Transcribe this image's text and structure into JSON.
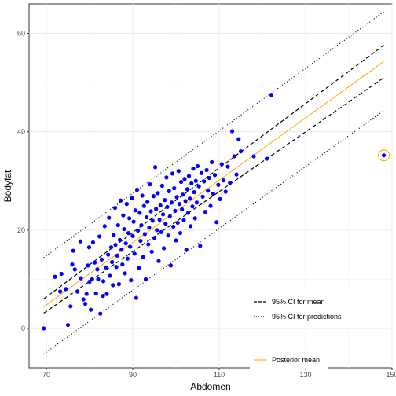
{
  "chart_data": {
    "type": "scatter",
    "title": "",
    "xlabel": "Abdomen",
    "ylabel": "Bodyfat",
    "xlim": [
      66,
      150
    ],
    "ylim": [
      -8,
      66
    ],
    "x_ticks": [
      70,
      90,
      110,
      130,
      150
    ],
    "y_ticks": [
      0,
      20,
      40,
      60
    ],
    "grid": true,
    "points": [
      [
        69.4,
        0.0
      ],
      [
        72.0,
        10.5
      ],
      [
        73.2,
        7.5
      ],
      [
        73.5,
        11.1
      ],
      [
        74.5,
        8.0
      ],
      [
        75.0,
        0.7
      ],
      [
        75.6,
        4.5
      ],
      [
        76.0,
        13.0
      ],
      [
        76.2,
        15.8
      ],
      [
        76.6,
        12.0
      ],
      [
        77.2,
        7.5
      ],
      [
        77.9,
        17.7
      ],
      [
        78.0,
        10.2
      ],
      [
        78.6,
        5.9
      ],
      [
        79.0,
        5.0
      ],
      [
        79.3,
        7.0
      ],
      [
        79.6,
        12.8
      ],
      [
        79.9,
        16.5
      ],
      [
        80.0,
        9.5
      ],
      [
        80.3,
        3.8
      ],
      [
        80.6,
        10.0
      ],
      [
        80.8,
        17.5
      ],
      [
        81.2,
        13.4
      ],
      [
        81.5,
        7.1
      ],
      [
        81.8,
        12.0
      ],
      [
        82.0,
        10.0
      ],
      [
        82.3,
        18.7
      ],
      [
        82.5,
        3.0
      ],
      [
        82.8,
        14.0
      ],
      [
        83.1,
        6.6
      ],
      [
        83.2,
        9.6
      ],
      [
        83.5,
        20.8
      ],
      [
        83.8,
        12.4
      ],
      [
        84.0,
        7.0
      ],
      [
        84.3,
        15.0
      ],
      [
        84.5,
        22.5
      ],
      [
        84.7,
        10.7
      ],
      [
        85.0,
        16.5
      ],
      [
        85.2,
        13.5
      ],
      [
        85.4,
        8.8
      ],
      [
        85.6,
        19.0
      ],
      [
        85.9,
        24.5
      ],
      [
        86.0,
        17.0
      ],
      [
        86.2,
        12.5
      ],
      [
        86.4,
        14.8
      ],
      [
        86.6,
        21.0
      ],
      [
        86.8,
        9.0
      ],
      [
        87.0,
        18.0
      ],
      [
        87.2,
        26.0
      ],
      [
        87.4,
        16.0
      ],
      [
        87.6,
        13.0
      ],
      [
        87.8,
        23.0
      ],
      [
        88.0,
        20.2
      ],
      [
        88.2,
        11.2
      ],
      [
        88.4,
        17.3
      ],
      [
        88.6,
        25.3
      ],
      [
        88.8,
        14.2
      ],
      [
        89.0,
        19.4
      ],
      [
        89.2,
        22.4
      ],
      [
        89.4,
        16.6
      ],
      [
        89.6,
        9.8
      ],
      [
        89.8,
        26.5
      ],
      [
        90.0,
        18.8
      ],
      [
        90.2,
        21.7
      ],
      [
        90.4,
        15.2
      ],
      [
        90.6,
        24.0
      ],
      [
        90.8,
        6.2
      ],
      [
        91.0,
        28.2
      ],
      [
        91.2,
        19.9
      ],
      [
        91.4,
        12.3
      ],
      [
        91.6,
        23.5
      ],
      [
        91.8,
        17.8
      ],
      [
        92.0,
        21.0
      ],
      [
        92.2,
        27.0
      ],
      [
        92.4,
        14.5
      ],
      [
        92.6,
        24.9
      ],
      [
        92.8,
        19.2
      ],
      [
        93.0,
        10.0
      ],
      [
        93.2,
        22.6
      ],
      [
        93.4,
        25.7
      ],
      [
        93.6,
        17.1
      ],
      [
        93.8,
        20.5
      ],
      [
        94.0,
        29.3
      ],
      [
        94.2,
        23.8
      ],
      [
        94.4,
        15.6
      ],
      [
        94.6,
        21.9
      ],
      [
        94.8,
        26.9
      ],
      [
        95.0,
        18.4
      ],
      [
        95.2,
        32.8
      ],
      [
        95.4,
        24.3
      ],
      [
        95.6,
        20.0
      ],
      [
        95.8,
        27.5
      ],
      [
        96.0,
        13.7
      ],
      [
        96.2,
        22.1
      ],
      [
        96.4,
        25.0
      ],
      [
        96.6,
        19.6
      ],
      [
        96.8,
        29.0
      ],
      [
        97.0,
        23.2
      ],
      [
        97.2,
        16.3
      ],
      [
        97.4,
        26.1
      ],
      [
        97.6,
        21.3
      ],
      [
        97.8,
        30.7
      ],
      [
        98.0,
        24.7
      ],
      [
        98.2,
        18.9
      ],
      [
        98.4,
        27.9
      ],
      [
        98.6,
        22.8
      ],
      [
        98.8,
        12.8
      ],
      [
        99.0,
        25.6
      ],
      [
        99.2,
        31.5
      ],
      [
        99.4,
        20.7
      ],
      [
        99.6,
        28.5
      ],
      [
        99.8,
        23.9
      ],
      [
        100.0,
        17.9
      ],
      [
        100.2,
        26.7
      ],
      [
        100.4,
        21.5
      ],
      [
        100.6,
        32.0
      ],
      [
        100.8,
        25.3
      ],
      [
        101.0,
        19.4
      ],
      [
        101.2,
        29.8
      ],
      [
        101.4,
        24.2
      ],
      [
        101.6,
        27.2
      ],
      [
        101.8,
        22.0
      ],
      [
        102.0,
        30.4
      ],
      [
        102.2,
        25.9
      ],
      [
        102.4,
        16.0
      ],
      [
        102.6,
        28.3
      ],
      [
        102.8,
        23.5
      ],
      [
        103.0,
        31.0
      ],
      [
        103.2,
        26.4
      ],
      [
        103.4,
        20.8
      ],
      [
        103.6,
        29.5
      ],
      [
        103.8,
        24.8
      ],
      [
        104.0,
        32.5
      ],
      [
        104.2,
        27.7
      ],
      [
        104.4,
        22.4
      ],
      [
        104.6,
        30.0
      ],
      [
        104.8,
        25.6
      ],
      [
        105.0,
        33.0
      ],
      [
        105.3,
        28.9
      ],
      [
        105.6,
        16.8
      ],
      [
        105.9,
        31.6
      ],
      [
        106.2,
        26.8
      ],
      [
        106.5,
        29.9
      ],
      [
        106.8,
        23.7
      ],
      [
        107.1,
        32.2
      ],
      [
        107.4,
        28.0
      ],
      [
        107.7,
        30.6
      ],
      [
        108.0,
        24.9
      ],
      [
        108.3,
        33.8
      ],
      [
        108.6,
        27.4
      ],
      [
        109.0,
        31.2
      ],
      [
        109.4,
        21.6
      ],
      [
        109.8,
        29.2
      ],
      [
        110.2,
        26.3
      ],
      [
        110.6,
        33.4
      ],
      [
        111.0,
        30.1
      ],
      [
        111.5,
        27.8
      ],
      [
        112.0,
        32.9
      ],
      [
        112.5,
        29.6
      ],
      [
        113.0,
        40.1
      ],
      [
        113.5,
        35.0
      ],
      [
        114.0,
        31.3
      ],
      [
        114.5,
        38.5
      ],
      [
        115.0,
        36.0
      ],
      [
        118.0,
        35.0
      ],
      [
        121.0,
        34.5
      ],
      [
        122.1,
        47.5
      ],
      [
        148.1,
        35.2
      ]
    ],
    "series": [
      {
        "name": "Posterior mean",
        "color": "#FFA500",
        "style": "solid",
        "x": [
          69.4,
          148.1
        ],
        "y": [
          4.4,
          54.3
        ]
      },
      {
        "name": "95% CI for mean",
        "color": "#000000",
        "style": "dashed",
        "x": [
          69.4,
          148.1
        ],
        "y": [
          6.0,
          57.6
        ]
      },
      {
        "name": "95% CI for mean",
        "color": "#000000",
        "style": "dashed",
        "x": [
          69.4,
          148.1
        ],
        "y": [
          3.1,
          51.0
        ]
      },
      {
        "name": "95% CI for predictions",
        "color": "#000000",
        "style": "dotted",
        "x": [
          69.4,
          148.1
        ],
        "y": [
          14.4,
          64.4
        ]
      },
      {
        "name": "95% CI for predictions",
        "color": "#000000",
        "style": "dotted",
        "x": [
          69.4,
          148.1
        ],
        "y": [
          -5.2,
          44.3
        ]
      }
    ],
    "highlight_point": [
      148.1,
      35.2
    ],
    "point_color": "#0000FF",
    "legend": {
      "placement": "bottom-right",
      "ci_entries": [
        {
          "label": "95% CI for mean",
          "style": "dashed"
        },
        {
          "label": "95% CI for predictions",
          "style": "dotted"
        }
      ],
      "mean_entry": {
        "label": "Posterior mean",
        "style": "solid",
        "color": "#FFA500"
      }
    }
  }
}
